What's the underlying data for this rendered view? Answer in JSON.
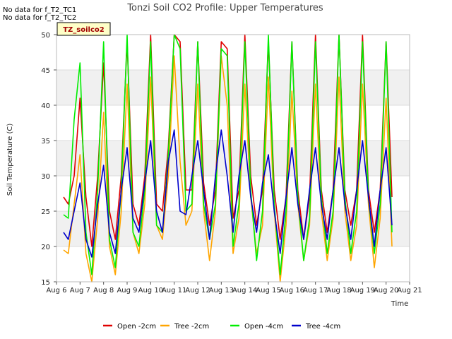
{
  "notes": [
    "No data for f_T2_TC1",
    "No data for f_T2_TC2"
  ],
  "badge": "TZ_soilco2",
  "chart_data": {
    "type": "line",
    "title": "Tonzi Soil CO2 Profile: Upper Temperatures",
    "xlabel": "Time",
    "ylabel": "Soil Temperature (C)",
    "ylim": [
      15,
      50
    ],
    "yticks": [
      15,
      20,
      25,
      30,
      35,
      40,
      45,
      50
    ],
    "xlim": [
      6,
      21
    ],
    "xticks": [
      6,
      7,
      8,
      9,
      10,
      11,
      12,
      13,
      14,
      15,
      16,
      17,
      18,
      19,
      20,
      21
    ],
    "xtick_labels": [
      "Aug 6",
      "Aug 7",
      "Aug 8",
      "Aug 9",
      "Aug 10",
      "Aug 11",
      "Aug 12",
      "Aug 13",
      "Aug 14",
      "Aug 15",
      "Aug 16",
      "Aug 17",
      "Aug 18",
      "Aug 19",
      "Aug 20",
      "Aug 21"
    ],
    "bands": [
      [
        20,
        25
      ],
      [
        30,
        35
      ],
      [
        40,
        45
      ]
    ],
    "legend_position": "bottom",
    "series": [
      {
        "name": "Open -2cm",
        "color": "#e00000",
        "x": [
          6.3,
          6.5,
          6.75,
          7.0,
          7.25,
          7.5,
          7.75,
          8.0,
          8.25,
          8.5,
          8.75,
          9.0,
          9.25,
          9.5,
          9.75,
          10.0,
          10.25,
          10.5,
          10.75,
          11.0,
          11.25,
          11.5,
          11.75,
          12.0,
          12.25,
          12.5,
          12.75,
          13.0,
          13.25,
          13.5,
          13.75,
          14.0,
          14.25,
          14.5,
          14.75,
          15.0,
          15.25,
          15.5,
          15.75,
          16.0,
          16.25,
          16.5,
          16.75,
          17.0,
          17.25,
          17.5,
          17.75,
          18.0,
          18.25,
          18.5,
          18.75,
          19.0,
          19.25,
          19.5,
          19.75,
          20.0,
          20.25
        ],
        "y": [
          27,
          26,
          30,
          41,
          27,
          20,
          30,
          46,
          25,
          21,
          30,
          49,
          26,
          23,
          30,
          50,
          26,
          25,
          34,
          50,
          49,
          28,
          28,
          49,
          29,
          23,
          28,
          49,
          48,
          24,
          28,
          50,
          30,
          23,
          28,
          49,
          28,
          21,
          27,
          49,
          28,
          21,
          27,
          50,
          28,
          22,
          28,
          50,
          28,
          23,
          28,
          50,
          28,
          22,
          28,
          49,
          27
        ]
      },
      {
        "name": "Tree -2cm",
        "color": "#ffa500",
        "x": [
          6.3,
          6.5,
          6.75,
          7.0,
          7.25,
          7.5,
          7.75,
          8.0,
          8.25,
          8.5,
          8.75,
          9.0,
          9.25,
          9.5,
          9.75,
          10.0,
          10.25,
          10.5,
          10.75,
          11.0,
          11.25,
          11.5,
          11.75,
          12.0,
          12.25,
          12.5,
          12.75,
          13.0,
          13.25,
          13.5,
          13.75,
          14.0,
          14.25,
          14.5,
          14.75,
          15.0,
          15.25,
          15.5,
          15.75,
          16.0,
          16.25,
          16.5,
          16.75,
          17.0,
          17.25,
          17.5,
          17.75,
          18.0,
          18.25,
          18.5,
          18.75,
          19.0,
          19.25,
          19.5,
          19.75,
          20.0,
          20.25
        ],
        "y": [
          19.5,
          19,
          26,
          33,
          19,
          15,
          24,
          39,
          20,
          16,
          25,
          43,
          22,
          19,
          26,
          44,
          23,
          21,
          30,
          47,
          32,
          23,
          25,
          43,
          25,
          18,
          25,
          47,
          40,
          19,
          24,
          43,
          27,
          19,
          23,
          44,
          25,
          15,
          23,
          42,
          26,
          18,
          23,
          43,
          25,
          18,
          24,
          44,
          25,
          18,
          23,
          43,
          26,
          17,
          24,
          41,
          20
        ]
      },
      {
        "name": "Open -4cm",
        "color": "#00ee00",
        "x": [
          6.3,
          6.5,
          6.75,
          7.0,
          7.25,
          7.5,
          7.75,
          8.0,
          8.25,
          8.5,
          8.75,
          9.0,
          9.25,
          9.5,
          9.75,
          10.0,
          10.25,
          10.5,
          10.75,
          11.0,
          11.25,
          11.5,
          11.75,
          12.0,
          12.25,
          12.5,
          12.75,
          13.0,
          13.25,
          13.5,
          13.75,
          14.0,
          14.25,
          14.5,
          14.75,
          15.0,
          15.25,
          15.5,
          15.75,
          16.0,
          16.25,
          16.5,
          16.75,
          17.0,
          17.25,
          17.5,
          17.75,
          18.0,
          18.25,
          18.5,
          18.75,
          19.0,
          19.25,
          19.5,
          19.75,
          20.0,
          20.25
        ],
        "y": [
          24.5,
          24,
          38,
          46,
          22,
          16,
          28,
          49,
          21,
          17,
          28,
          50,
          22,
          20,
          28,
          49,
          23,
          22,
          33,
          50,
          48,
          25,
          26,
          49,
          26,
          21,
          26,
          48,
          47,
          20,
          26,
          49,
          28,
          18,
          25,
          50,
          26,
          16,
          25,
          49,
          27,
          18,
          24,
          49,
          27,
          19,
          25,
          50,
          27,
          19,
          25,
          49,
          27,
          19,
          26,
          49,
          22
        ]
      },
      {
        "name": "Tree -4cm",
        "color": "#0000cc",
        "x": [
          6.3,
          6.5,
          6.75,
          7.0,
          7.25,
          7.5,
          7.75,
          8.0,
          8.25,
          8.5,
          8.75,
          9.0,
          9.25,
          9.5,
          9.75,
          10.0,
          10.25,
          10.5,
          10.75,
          11.0,
          11.25,
          11.5,
          11.75,
          12.0,
          12.25,
          12.5,
          12.75,
          13.0,
          13.25,
          13.5,
          13.75,
          14.0,
          14.25,
          14.5,
          14.75,
          15.0,
          15.25,
          15.5,
          15.75,
          16.0,
          16.25,
          16.5,
          16.75,
          17.0,
          17.25,
          17.5,
          17.75,
          18.0,
          18.25,
          18.5,
          18.75,
          19.0,
          19.25,
          19.5,
          19.75,
          20.0,
          20.25
        ],
        "y": [
          22,
          21,
          25,
          29,
          21,
          18.5,
          26,
          31.5,
          22,
          19,
          28,
          34,
          24,
          22,
          29,
          35,
          25,
          22,
          32,
          36.5,
          25,
          24.5,
          30,
          35,
          28,
          21,
          30,
          36.5,
          30,
          22,
          30,
          35,
          27,
          22,
          29,
          33,
          25,
          19,
          27,
          34,
          26,
          21,
          28,
          34,
          26,
          21,
          28,
          34,
          26,
          21,
          28,
          35,
          27,
          20,
          28,
          34,
          23
        ]
      }
    ]
  }
}
